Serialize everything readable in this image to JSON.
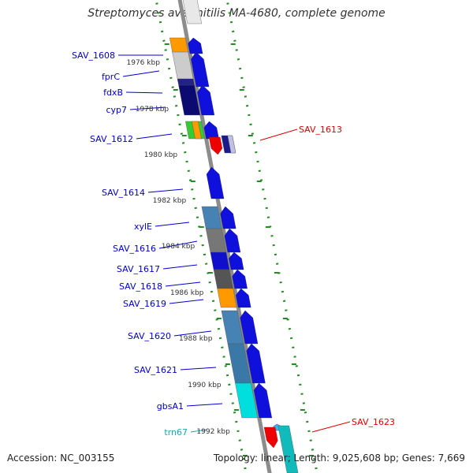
{
  "title": "Streptomyces avermitilis MA-4680, complete genome",
  "accession": "Accession: NC_003155",
  "topology_text": "Topology: linear; Length: 9,025,608 bp; Genes: 7,669",
  "colors": {
    "backbone": "#8c8c8c",
    "tick": "#228b22",
    "strand_arrow": "#1010dd",
    "label_forward": "#0000cc",
    "label_reverse": "#dd0000",
    "label_trna": "#1aa6b7",
    "ruler_text": "#333333"
  },
  "ruler_labels": [
    "1976 kbp",
    "1978 kbp",
    "1980 kbp",
    "1982 kbp",
    "1984 kbp",
    "1986 kbp",
    "1988 kbp",
    "1990 kbp",
    "1992 kbp"
  ],
  "genes": [
    {
      "name": "SAV_1608",
      "strand": "forward"
    },
    {
      "name": "fprC",
      "strand": "forward"
    },
    {
      "name": "fdxB",
      "strand": "forward"
    },
    {
      "name": "cyp7",
      "strand": "forward"
    },
    {
      "name": "SAV_1612",
      "strand": "forward"
    },
    {
      "name": "SAV_1613",
      "strand": "reverse"
    },
    {
      "name": "SAV_1614",
      "strand": "forward"
    },
    {
      "name": "xylE",
      "strand": "forward"
    },
    {
      "name": "SAV_1616",
      "strand": "forward"
    },
    {
      "name": "SAV_1617",
      "strand": "forward"
    },
    {
      "name": "SAV_1618",
      "strand": "forward"
    },
    {
      "name": "SAV_1619",
      "strand": "forward"
    },
    {
      "name": "SAV_1620",
      "strand": "forward"
    },
    {
      "name": "SAV_1621",
      "strand": "forward"
    },
    {
      "name": "gbsA1",
      "strand": "forward"
    },
    {
      "name": "trn67",
      "strand": "forward"
    },
    {
      "name": "SAV_1623",
      "strand": "reverse"
    }
  ]
}
